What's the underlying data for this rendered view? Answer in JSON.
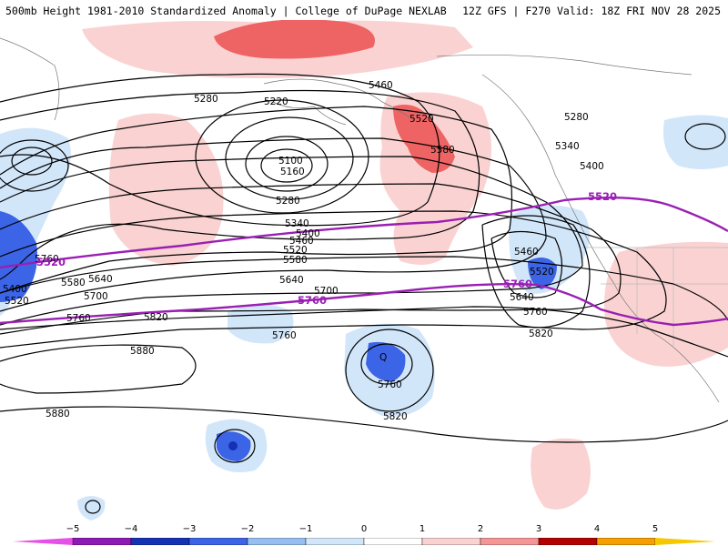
{
  "header": {
    "title_left": "500mb Height 1981-2010 Standardized Anomaly | College of DuPage NEXLAB",
    "title_right": "12Z GFS | F270 Valid: 18Z FRI NOV 28 2025"
  },
  "map": {
    "contour_labels": {
      "c5280_a": "5280",
      "c5220": "5220",
      "c5100": "5100",
      "c5160": "5160",
      "c5280_b": "5280",
      "c5340": "5340",
      "c5400_a": "5400",
      "c5460_a": "5460",
      "c5520_a": "5520",
      "c5580_a": "5580",
      "c5640_a": "5640",
      "c5700_a": "5700",
      "c5760_a": "5760",
      "c5820_a": "5820",
      "c5880_a": "5880",
      "c5880_b": "5880",
      "c5760_b": "5760",
      "c5760_c": "5760",
      "c5820_b": "5820",
      "c5460_b": "5460",
      "c5520_b": "5520",
      "c5580_b": "5580",
      "c5280_c": "5280",
      "c5340_b": "5340",
      "c5400_b": "5400",
      "c5460_c": "5460",
      "c5520_c": "5520",
      "c5640_b": "5640",
      "c5760_d": "5760",
      "c5820_c": "5820",
      "c5400_c": "5400",
      "c5520_d": "5520",
      "c5580_c": "5580",
      "c5640_c": "5640",
      "c5700_b": "5700",
      "c5760_e": "5760",
      "low_center": "Q"
    },
    "purple_labels": {
      "p5520_w": "5520",
      "p5520_e": "5520",
      "p5760_mid": "5760",
      "p5760_e": "5760"
    }
  },
  "colorbar": {
    "ticks": [
      "−5",
      "−4",
      "−3",
      "−2",
      "−1",
      "0",
      "1",
      "2",
      "3",
      "4",
      "5"
    ],
    "colors": {
      "m5": "#e650e6",
      "m4": "#8c1ab4",
      "m3": "#1432b4",
      "m2": "#3c64e6",
      "m1": "#96bef0",
      "m0": "#d2e6fa",
      "p0": "#ffffff",
      "p1": "#fad2d2",
      "p2": "#f59696",
      "p3": "#e64646",
      "p4": "#b40000",
      "p5": "#f5a000",
      "p6": "#f5c800"
    }
  }
}
